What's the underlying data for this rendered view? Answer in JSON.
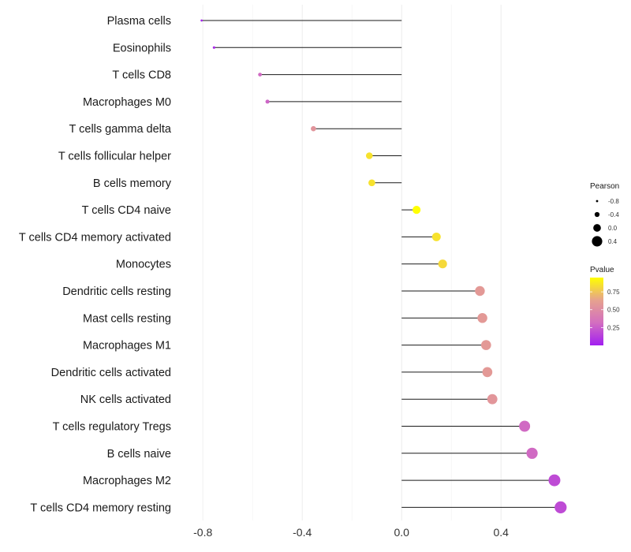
{
  "chart_data": {
    "type": "lollipop",
    "title": "",
    "xlabel": "",
    "ylabel": "",
    "xlim": [
      -0.88,
      0.72
    ],
    "x_ticks": [
      "-0.8",
      "-0.4",
      "0.0",
      "0.4"
    ],
    "x_tick_values": [
      -0.8,
      -0.4,
      0.0,
      0.4
    ],
    "grid": true,
    "legend_position": "right",
    "categories": [
      "Plasma cells",
      "Eosinophils",
      "T cells CD8",
      "Macrophages M0",
      "T cells gamma delta",
      "T cells follicular helper",
      "B cells memory",
      "T cells CD4 naive",
      "T cells CD4 memory activated",
      "Monocytes",
      "Dendritic cells resting",
      "Mast cells resting",
      "Macrophages M1",
      "Dendritic cells activated",
      "NK cells activated",
      "T cells regulatory  Tregs ",
      "B cells naive",
      "Macrophages M2",
      "T cells CD4 memory resting"
    ],
    "pearson": [
      -0.805,
      -0.755,
      -0.57,
      -0.54,
      -0.355,
      -0.13,
      -0.12,
      0.06,
      0.14,
      0.165,
      0.315,
      0.325,
      0.34,
      0.345,
      0.365,
      0.495,
      0.525,
      0.615,
      0.64
    ],
    "pvalue": [
      0.02,
      0.05,
      0.3,
      0.28,
      0.55,
      0.85,
      0.85,
      0.95,
      0.85,
      0.82,
      0.58,
      0.58,
      0.58,
      0.58,
      0.56,
      0.3,
      0.3,
      0.18,
      0.18
    ],
    "legend_size": {
      "title": "Pearson",
      "labels": [
        "-0.8",
        "-0.4",
        "0.0",
        "0.4"
      ],
      "values": [
        -0.8,
        -0.4,
        0.0,
        0.4
      ]
    },
    "legend_color": {
      "title": "Pvalue",
      "labels": [
        "0.75",
        "0.50",
        "0.25"
      ],
      "values": [
        0.75,
        0.5,
        0.25
      ],
      "range": [
        0.0,
        0.95
      ],
      "colors": [
        "#a21ef0",
        "#d36ec0",
        "#e6a28e",
        "#ffff00"
      ]
    }
  }
}
